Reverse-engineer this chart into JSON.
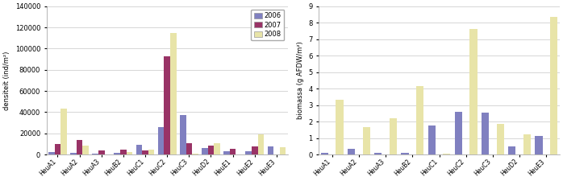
{
  "left": {
    "categories": [
      "HeuA1",
      "HeuA2",
      "HeuA3",
      "HeuB2",
      "HeuC1",
      "HeuC2",
      "HeuC3",
      "HeuD2",
      "HeuE1",
      "HeuE2",
      "HeuE3"
    ],
    "series": {
      "2006": [
        2000,
        1500,
        500,
        1500,
        9000,
        26000,
        37000,
        6000,
        3000,
        3000,
        7500
      ],
      "2007": [
        9500,
        14000,
        3500,
        4500,
        3500,
        93000,
        11000,
        8500,
        5000,
        7500,
        0
      ],
      "2008": [
        43000,
        8500,
        0,
        2000,
        4500,
        115000,
        500,
        11000,
        0,
        19000,
        7000
      ]
    },
    "colors": {
      "2006": "#8080c0",
      "2007": "#993366",
      "2008": "#e8e4a8"
    },
    "ylabel": "densiteit (ind/m²)",
    "ylim": [
      0,
      140000
    ],
    "yticks": [
      0,
      20000,
      40000,
      60000,
      80000,
      100000,
      120000,
      140000
    ]
  },
  "right": {
    "categories": [
      "HeuA1",
      "HeuA2",
      "HeuA3",
      "HeuB2",
      "HeuC1",
      "HeuC2",
      "HeuC3",
      "HeuD2",
      "HeuE3"
    ],
    "series": {
      "2006": [
        0.12,
        0.35,
        0.1,
        0.1,
        1.75,
        2.6,
        2.55,
        0.5,
        1.1
      ],
      "2007": [
        0,
        0,
        0,
        0,
        0,
        0,
        0,
        0,
        0
      ],
      "2008": [
        3.3,
        1.65,
        2.2,
        4.15,
        0.07,
        7.6,
        1.85,
        1.2,
        8.35
      ]
    },
    "colors": {
      "2006": "#8080c0",
      "2007": "#993366",
      "2008": "#e8e4a8"
    },
    "ylabel": "biomassa (g AFDW/m²)",
    "ylim": [
      0,
      9
    ],
    "yticks": [
      0,
      1,
      2,
      3,
      4,
      5,
      6,
      7,
      8,
      9
    ]
  },
  "legend_labels": [
    "2006",
    "2007",
    "2008"
  ],
  "legend_colors": [
    "#8080c0",
    "#993366",
    "#e8e4a8"
  ],
  "bar_width": 0.28,
  "background_color": "#ffffff",
  "grid_color": "#d0d0d0",
  "fig_width": 6.98,
  "fig_height": 2.25,
  "dpi": 100
}
